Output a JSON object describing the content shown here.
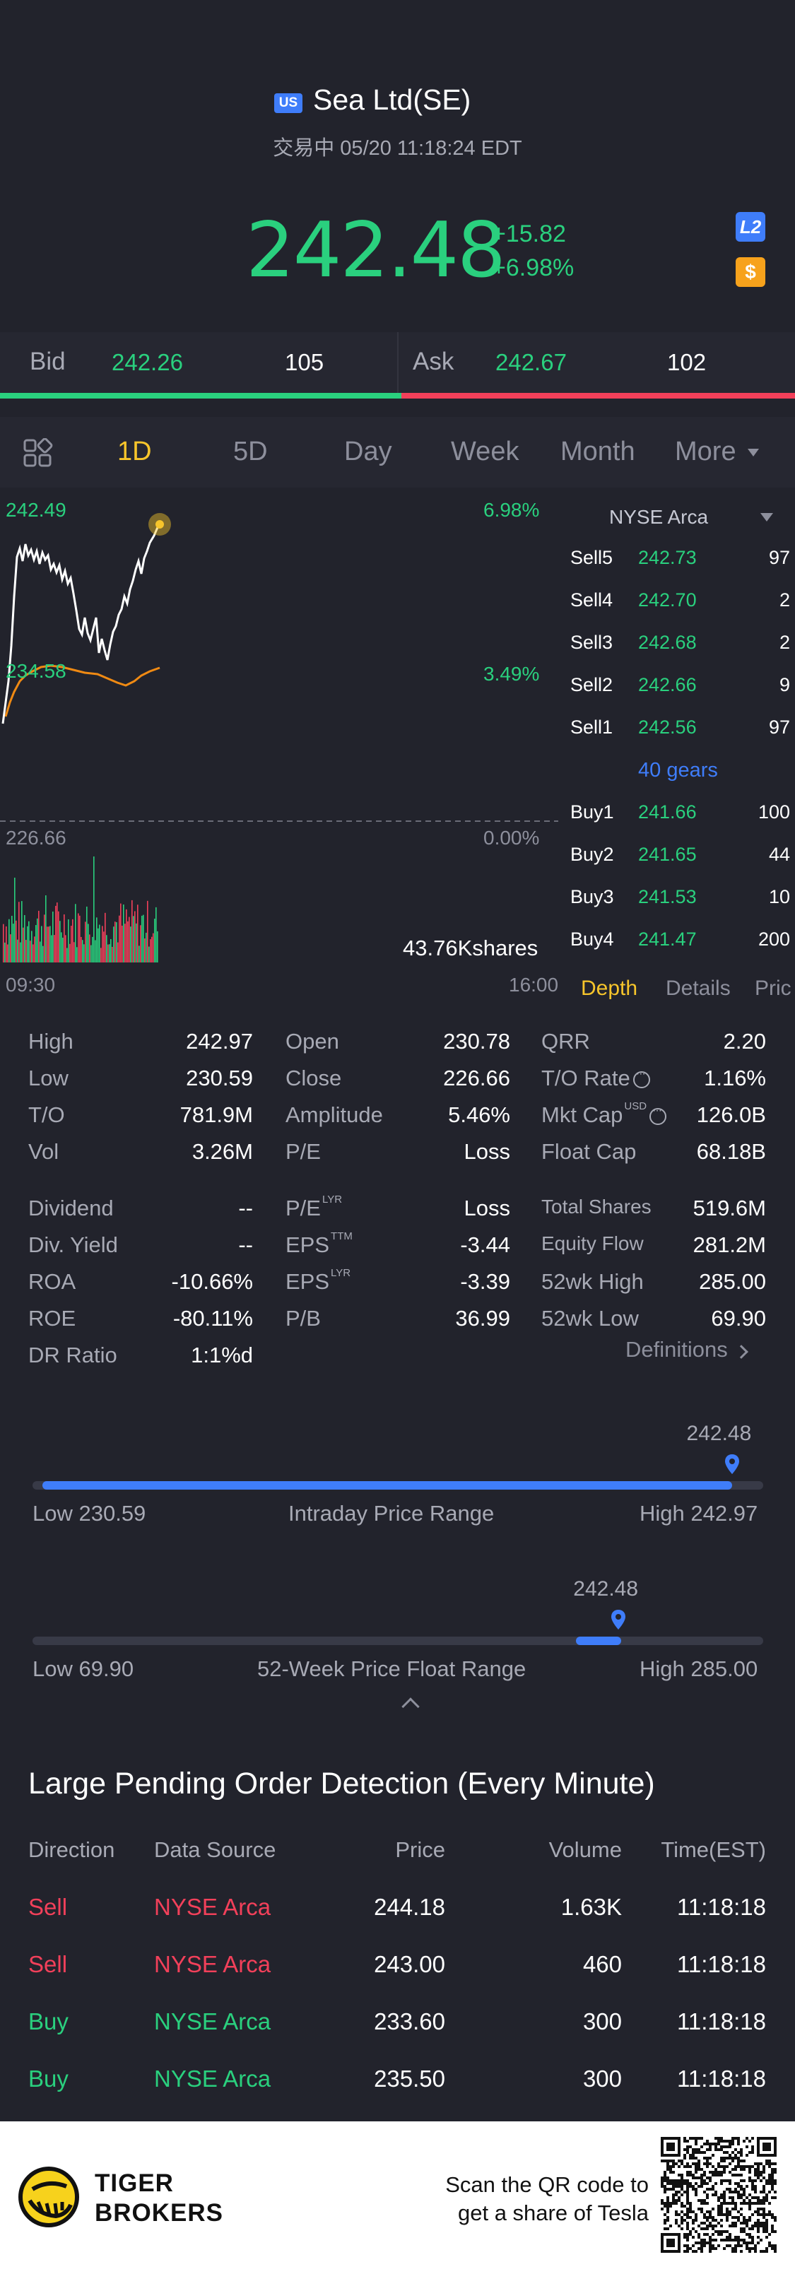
{
  "header": {
    "market_badge": "US",
    "title": "Sea Ltd(SE)",
    "status": "交易中 05/20 11:18:24 EDT",
    "last_price": "242.48",
    "change_abs": "+15.82",
    "change_pct": "+6.98%",
    "l2_badge": "L2",
    "currency_badge": "$"
  },
  "bidask": {
    "bid_label": "Bid",
    "bid_price": "242.26",
    "bid_size": "105",
    "ask_label": "Ask",
    "ask_price": "242.67",
    "ask_size": "102"
  },
  "tabs": [
    "1D",
    "5D",
    "Day",
    "Week",
    "Month",
    "More"
  ],
  "active_tab": "1D",
  "chart": {
    "price_high_label": "242.49",
    "price_mid_label": "234.58",
    "price_base_label": "226.66",
    "pct_high_label": "6.98%",
    "pct_mid_label": "3.49%",
    "pct_base_label": "0.00%",
    "volume_label": "43.76Kshares",
    "time_start": "09:30",
    "time_end": "16:00"
  },
  "depth": {
    "exchange": "NYSE Arca",
    "sells": [
      {
        "label": "Sell5",
        "price": "242.73",
        "qty": "97"
      },
      {
        "label": "Sell4",
        "price": "242.70",
        "qty": "2"
      },
      {
        "label": "Sell3",
        "price": "242.68",
        "qty": "2"
      },
      {
        "label": "Sell2",
        "price": "242.66",
        "qty": "9"
      },
      {
        "label": "Sell1",
        "price": "242.56",
        "qty": "97"
      }
    ],
    "gears": "40 gears",
    "buys": [
      {
        "label": "Buy1",
        "price": "241.66",
        "qty": "100"
      },
      {
        "label": "Buy2",
        "price": "241.65",
        "qty": "44"
      },
      {
        "label": "Buy3",
        "price": "241.53",
        "qty": "10"
      },
      {
        "label": "Buy4",
        "price": "241.47",
        "qty": "200"
      }
    ],
    "tabs": [
      "Depth",
      "Details",
      "Pric"
    ]
  },
  "stats": {
    "col1": [
      {
        "k": "High",
        "v": "242.97"
      },
      {
        "k": "Low",
        "v": "230.59"
      },
      {
        "k": "T/O",
        "v": "781.9M"
      },
      {
        "k": "Vol",
        "v": "3.26M"
      },
      {
        "k": "Dividend",
        "v": "--"
      },
      {
        "k": "Div. Yield",
        "v": "--"
      },
      {
        "k": "ROA",
        "v": "-10.66%"
      },
      {
        "k": "ROE",
        "v": "-80.11%"
      },
      {
        "k": "DR Ratio",
        "v": "1:1%d"
      }
    ],
    "col2": [
      {
        "k": "Open",
        "v": "230.78"
      },
      {
        "k": "Close",
        "v": "226.66"
      },
      {
        "k": "Amplitude",
        "v": "5.46%"
      },
      {
        "k": "P/E",
        "v": "Loss"
      },
      {
        "k": "P/E",
        "sup": "LYR",
        "v": "Loss"
      },
      {
        "k": "EPS",
        "sup": "TTM",
        "v": "-3.44"
      },
      {
        "k": "EPS",
        "sup": "LYR",
        "v": "-3.39"
      },
      {
        "k": "P/B",
        "v": "36.99"
      }
    ],
    "col3": [
      {
        "k": "QRR",
        "v": "2.20"
      },
      {
        "k": "T/O Rate",
        "v": "1.16%"
      },
      {
        "k": "Mkt Cap",
        "sup": "USD",
        "v": "126.0B"
      },
      {
        "k": "Float Cap",
        "v": "68.18B"
      },
      {
        "k": "Total Shares",
        "v": "519.6M"
      },
      {
        "k": "Equity Flow",
        "v": "281.2M"
      },
      {
        "k": "52wk High",
        "v": "285.00"
      },
      {
        "k": "52wk Low",
        "v": "69.90"
      }
    ],
    "definitions": "Definitions"
  },
  "intraday_range": {
    "current": "242.48",
    "low_label": "Low 230.59",
    "title": "Intraday Price Range",
    "high_label": "High 242.97",
    "position_fraction": 0.957
  },
  "week52_range": {
    "current": "242.48",
    "low_label": "Low 69.90",
    "title": "52-Week Price Float Range",
    "high_label": "High 285.00",
    "position_fraction": 0.802
  },
  "large_orders": {
    "title": "Large Pending Order Detection (Every Minute)",
    "headers": [
      "Direction",
      "Data Source",
      "Price",
      "Volume",
      "Time(EST)"
    ],
    "rows": [
      {
        "dir": "Sell",
        "src": "NYSE Arca",
        "price": "244.18",
        "vol": "1.63K",
        "time": "11:18:18"
      },
      {
        "dir": "Sell",
        "src": "NYSE Arca",
        "price": "243.00",
        "vol": "460",
        "time": "11:18:18"
      },
      {
        "dir": "Buy",
        "src": "NYSE Arca",
        "price": "233.60",
        "vol": "300",
        "time": "11:18:18"
      },
      {
        "dir": "Buy",
        "src": "NYSE Arca",
        "price": "235.50",
        "vol": "300",
        "time": "11:18:18"
      }
    ]
  },
  "footer": {
    "brand_line1": "TIGER",
    "brand_line2": "BROKERS",
    "scan_line1": "Scan the QR code to",
    "scan_line2": "get a share of Tesla"
  },
  "colors": {
    "background": "#22232c",
    "up": "#2ad07e",
    "down": "#f2405a",
    "accent": "#3f7dfa",
    "active_tab": "#f7c52b"
  }
}
